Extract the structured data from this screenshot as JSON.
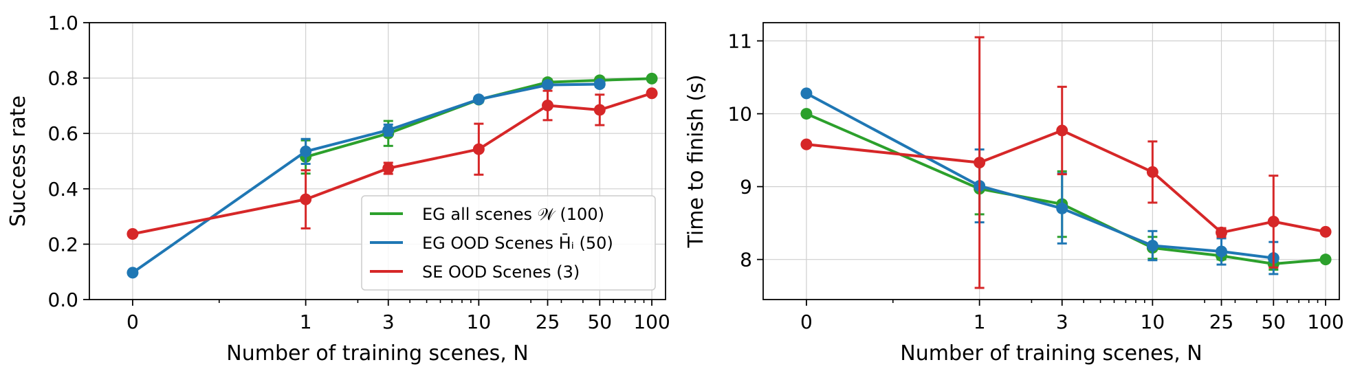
{
  "chart_data": [
    {
      "type": "line",
      "xlabel": "Number of training scenes, N",
      "ylabel": "Success rate",
      "x_ticks": [
        "0",
        "1",
        "3",
        "10",
        "25",
        "50",
        "100"
      ],
      "x_scale": "symlog",
      "ylim": [
        0.0,
        1.0
      ],
      "y_ticks": [
        "0.0",
        "0.2",
        "0.4",
        "0.6",
        "0.8",
        "1.0"
      ],
      "grid": true,
      "legend_position": "lower-right",
      "series": [
        {
          "name": "EG all scenes 𝒲 (100)",
          "color": "#2ca02c",
          "x": [
            1,
            3,
            10,
            25,
            50,
            100
          ],
          "y": [
            0.515,
            0.6,
            0.722,
            0.785,
            0.792,
            0.798
          ],
          "err": [
            0.06,
            0.045,
            0.01,
            0.01,
            0.01,
            0.0
          ]
        },
        {
          "name": "EG OOD Scenes H̄ᵢ (50)",
          "color": "#1f77b4",
          "x": [
            0,
            1,
            3,
            10,
            25,
            50
          ],
          "y": [
            0.097,
            0.535,
            0.612,
            0.723,
            0.775,
            0.778
          ],
          "err": [
            0.0,
            0.045,
            0.02,
            0.01,
            0.01,
            0.01
          ]
        },
        {
          "name": "SE OOD Scenes (3)",
          "color": "#d62728",
          "x": [
            0,
            1,
            3,
            10,
            25,
            50,
            100
          ],
          "y": [
            0.237,
            0.362,
            0.474,
            0.543,
            0.701,
            0.685,
            0.745
          ],
          "err": [
            0.0,
            0.105,
            0.02,
            0.092,
            0.053,
            0.055,
            0.0
          ]
        }
      ]
    },
    {
      "type": "line",
      "xlabel": "Number of training scenes, N",
      "ylabel": "Time to finish (s)",
      "x_ticks": [
        "0",
        "1",
        "3",
        "10",
        "25",
        "50",
        "100"
      ],
      "x_scale": "symlog",
      "ylim": [
        7.45,
        11.25
      ],
      "y_ticks": [
        "8",
        "9",
        "10",
        "11"
      ],
      "grid": true,
      "series": [
        {
          "color": "#2ca02c",
          "x": [
            0,
            1,
            3,
            10,
            25,
            50,
            100
          ],
          "y": [
            10.0,
            8.97,
            8.76,
            8.16,
            8.05,
            7.94,
            8.0
          ],
          "err": [
            0.0,
            0.35,
            0.45,
            0.15,
            0.05,
            0.08,
            0.0
          ]
        },
        {
          "color": "#1f77b4",
          "x": [
            0,
            1,
            3,
            10,
            25,
            50
          ],
          "y": [
            10.28,
            9.01,
            8.7,
            8.19,
            8.11,
            8.02
          ],
          "err": [
            0.0,
            0.5,
            0.48,
            0.2,
            0.18,
            0.22
          ]
        },
        {
          "color": "#d62728",
          "x": [
            0,
            1,
            3,
            10,
            25,
            50,
            100
          ],
          "y": [
            9.58,
            9.33,
            9.77,
            9.2,
            8.37,
            8.52,
            8.38
          ],
          "err": [
            0.0,
            1.72,
            0.6,
            0.42,
            0.06,
            0.63,
            0.0
          ]
        }
      ]
    }
  ]
}
